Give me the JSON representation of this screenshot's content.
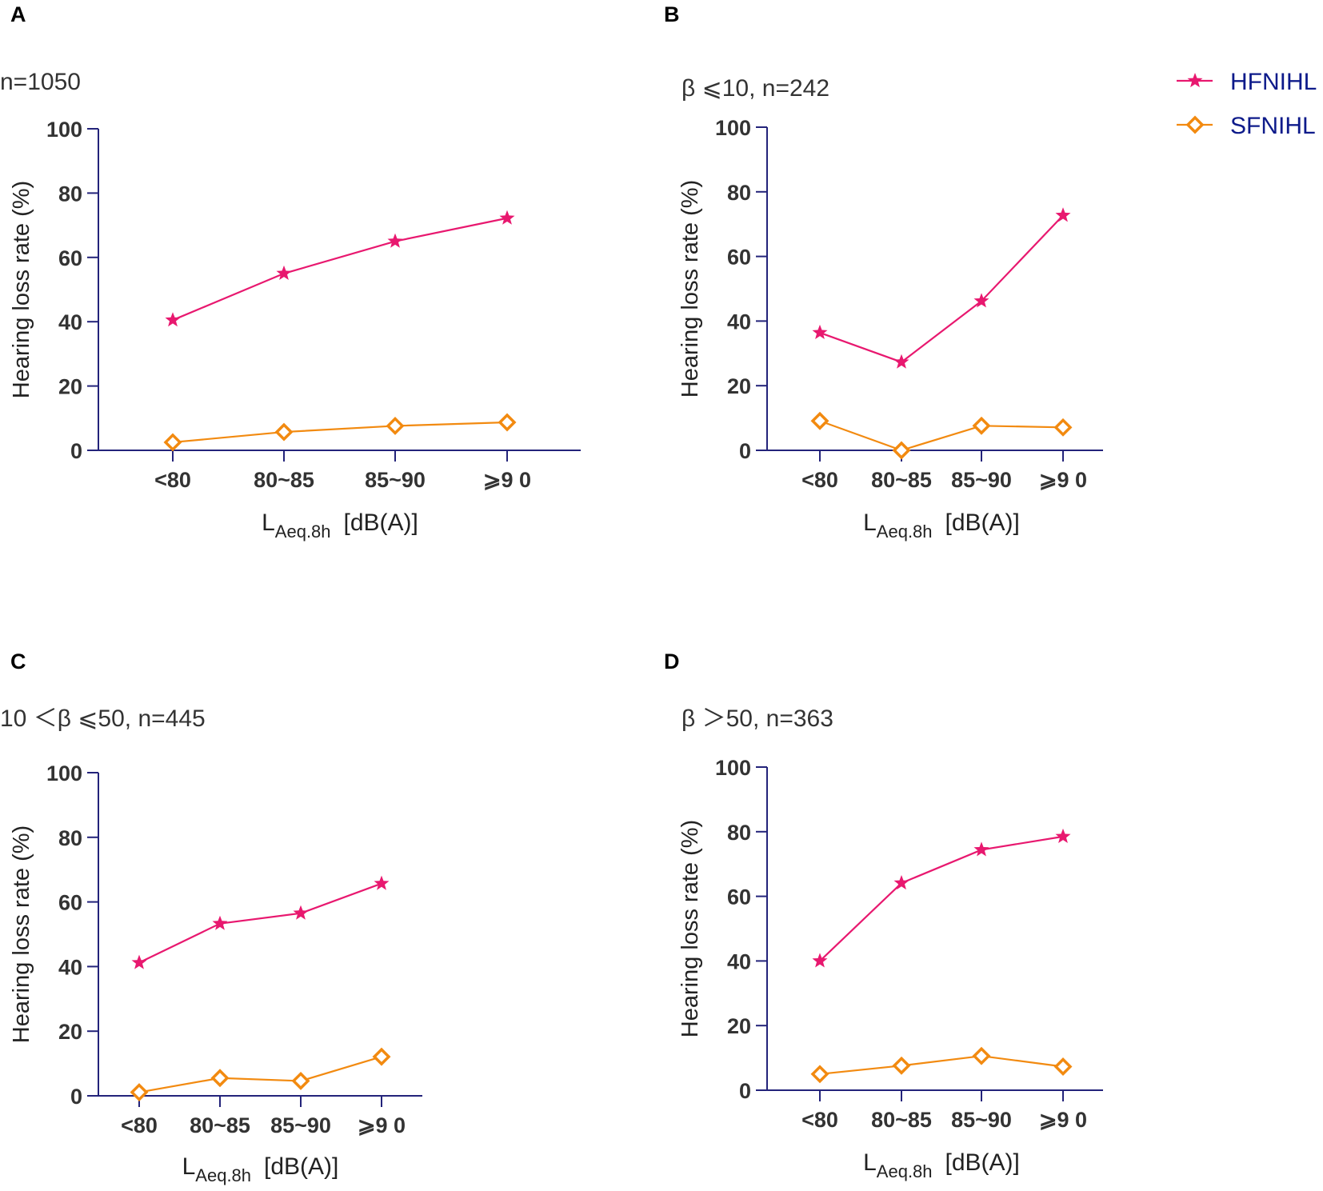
{
  "colors": {
    "axis": "#23237a",
    "HFNIHL": "#e8186f",
    "SFNIHL": "#f28a10"
  },
  "legend": {
    "position": "top-right",
    "items": [
      {
        "name": "HFNIHL",
        "marker": "star"
      },
      {
        "name": "SFNIHL",
        "marker": "diamond"
      }
    ]
  },
  "chart_data": [
    {
      "panel": "A",
      "type": "line",
      "subtitle": "n=1050",
      "ylabel": "Hearing loss rate (%)",
      "xlabel_main": "L",
      "xlabel_sub": "Aeq.8h",
      "xlabel_unit": "[dB(A)]",
      "categories": [
        "<80",
        "80~85",
        "85~90",
        "⩾9 0"
      ],
      "ylim": [
        0,
        100
      ],
      "yticks": [
        0,
        20,
        40,
        60,
        80,
        100
      ],
      "series": [
        {
          "name": "HFNIHL",
          "values": [
            40.5,
            55.0,
            65.0,
            72.2
          ]
        },
        {
          "name": "SFNIHL",
          "values": [
            2.5,
            5.7,
            7.6,
            8.7
          ]
        }
      ]
    },
    {
      "panel": "B",
      "type": "line",
      "subtitle": "β ⩽10, n=242",
      "ylabel": "Hearing loss rate (%)",
      "xlabel_main": "L",
      "xlabel_sub": "Aeq.8h",
      "xlabel_unit": "[dB(A)]",
      "categories": [
        "<80",
        "80~85",
        "85~90",
        "⩾9 0"
      ],
      "ylim": [
        0,
        100
      ],
      "yticks": [
        0,
        20,
        40,
        60,
        80,
        100
      ],
      "series": [
        {
          "name": "HFNIHL",
          "values": [
            36.4,
            27.3,
            46.2,
            72.7
          ]
        },
        {
          "name": "SFNIHL",
          "values": [
            9.1,
            0.0,
            7.6,
            7.1
          ]
        }
      ]
    },
    {
      "panel": "C",
      "type": "line",
      "subtitle": "10 ＜β ⩽50, n=445",
      "ylabel": "Hearing loss rate (%)",
      "xlabel_main": "L",
      "xlabel_sub": "Aeq.8h",
      "xlabel_unit": "[dB(A)]",
      "categories": [
        "<80",
        "80~85",
        "85~90",
        "⩾9 0"
      ],
      "ylim": [
        0,
        100
      ],
      "yticks": [
        0,
        20,
        40,
        60,
        80,
        100
      ],
      "series": [
        {
          "name": "HFNIHL",
          "values": [
            41.2,
            53.3,
            56.5,
            65.7
          ]
        },
        {
          "name": "SFNIHL",
          "values": [
            1.1,
            5.5,
            4.6,
            12.1
          ]
        }
      ]
    },
    {
      "panel": "D",
      "type": "line",
      "subtitle": "β ＞50, n=363",
      "ylabel": "Hearing loss rate (%)",
      "xlabel_main": "L",
      "xlabel_sub": "Aeq.8h",
      "xlabel_unit": "[dB(A)]",
      "categories": [
        "<80",
        "80~85",
        "85~90",
        "⩾9 0"
      ],
      "ylim": [
        0,
        100
      ],
      "yticks": [
        0,
        20,
        40,
        60,
        80,
        100
      ],
      "series": [
        {
          "name": "HFNIHL",
          "values": [
            40.0,
            64.1,
            74.4,
            78.5
          ]
        },
        {
          "name": "SFNIHL",
          "values": [
            5.0,
            7.6,
            10.6,
            7.3
          ]
        }
      ]
    }
  ]
}
